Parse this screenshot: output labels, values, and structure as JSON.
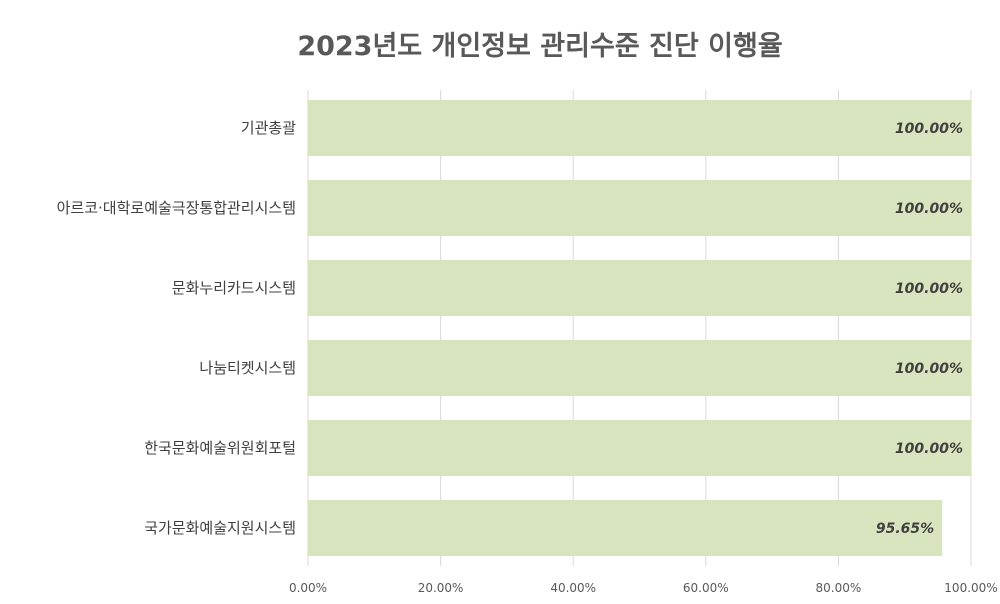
{
  "chart_data": {
    "type": "bar",
    "orientation": "horizontal",
    "title": "2023년도 개인정보 관리수준 진단 이행율",
    "categories": [
      "기관총괄",
      "아르코·대학로예술극장통합관리시스템",
      "문화누리카드시스템",
      "나눔티켓시스템",
      "한국문화예술위원회포털",
      "국가문화예술지원시스템"
    ],
    "values": [
      100.0,
      100.0,
      100.0,
      100.0,
      100.0,
      95.65
    ],
    "data_labels": [
      "100.00%",
      "100.00%",
      "100.00%",
      "100.00%",
      "100.00%",
      "95.65%"
    ],
    "xlim": [
      0,
      100
    ],
    "x_ticks": [
      0,
      20,
      40,
      60,
      80,
      100
    ],
    "x_tick_labels": [
      "0.00%",
      "20.00%",
      "40.00%",
      "60.00%",
      "80.00%",
      "100.00%"
    ],
    "grid": true,
    "bar_color": "#d7e4bd",
    "grid_color": "#d9d9d9",
    "xlabel": "",
    "ylabel": ""
  }
}
